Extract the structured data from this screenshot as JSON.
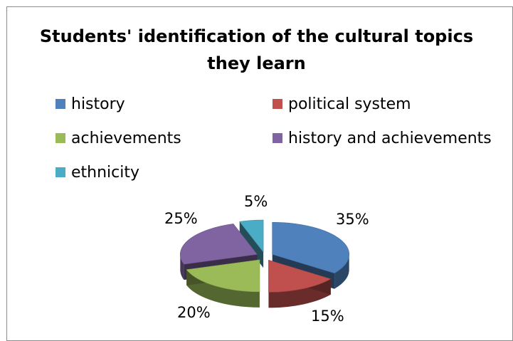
{
  "chart_data": {
    "type": "pie",
    "title_line1": "Students' identification of the cultural topics",
    "title_line2": "they learn",
    "legend_position": "top",
    "series": [
      {
        "name": "history",
        "value": 35,
        "label": "35%",
        "color": "#4f81bd"
      },
      {
        "name": "political system",
        "value": 15,
        "label": "15%",
        "color": "#c0504d"
      },
      {
        "name": "achievements",
        "value": 20,
        "label": "20%",
        "color": "#9bbb59"
      },
      {
        "name": "history and achievements",
        "value": 25,
        "label": "25%",
        "color": "#8064a2"
      },
      {
        "name": "ethnicity",
        "value": 5,
        "label": "5%",
        "color": "#4bacc6"
      }
    ],
    "style": "3d-exploded"
  }
}
